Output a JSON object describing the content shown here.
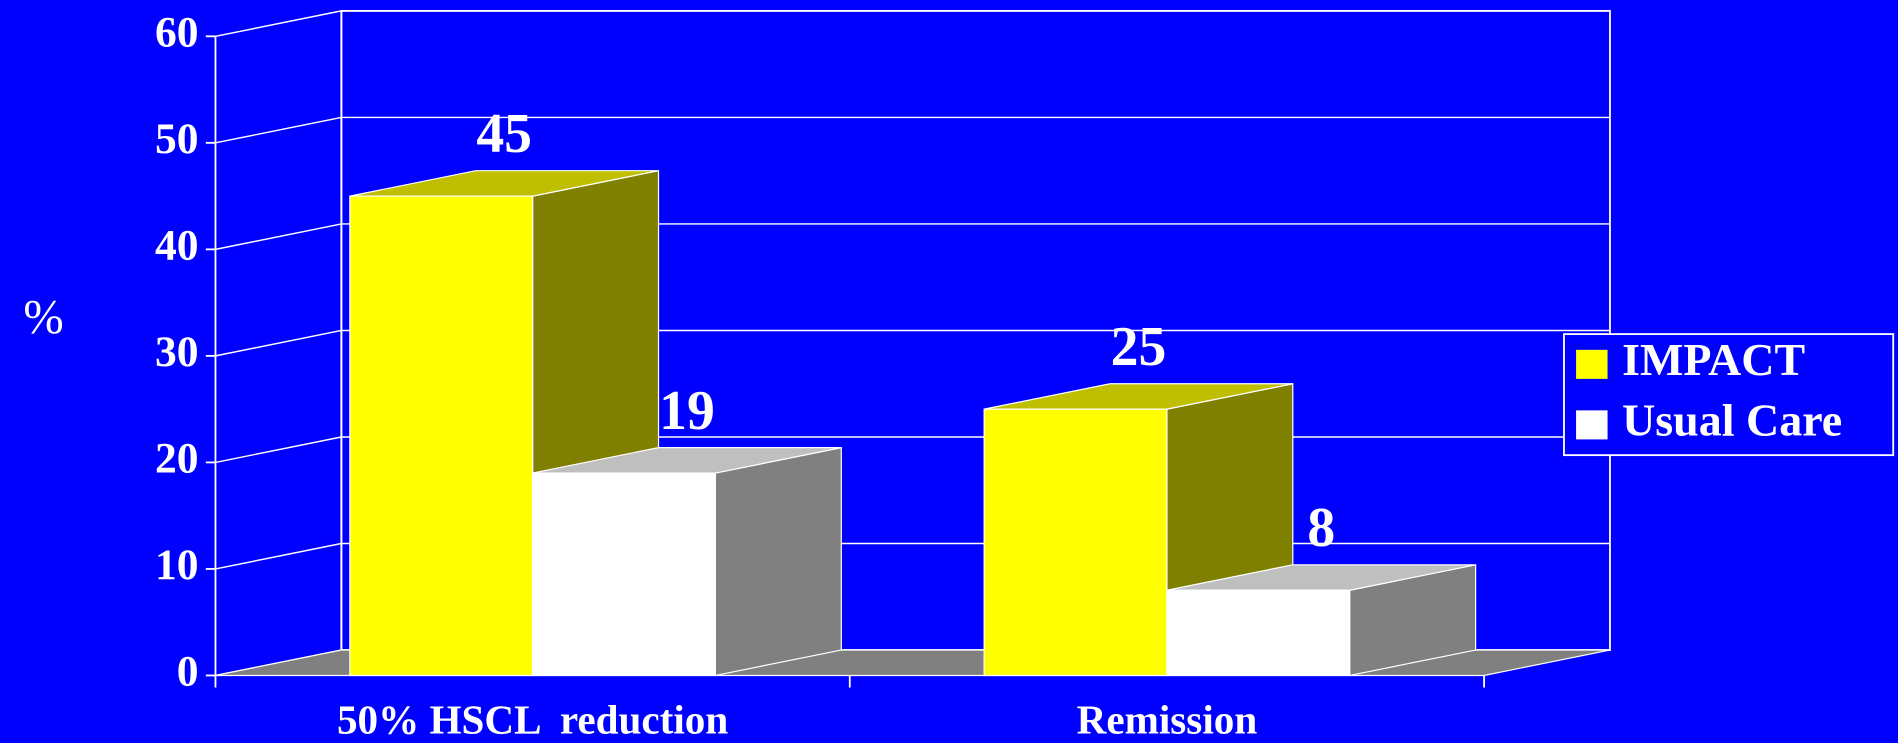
{
  "chart_data": {
    "type": "bar3d",
    "y_label": "%",
    "categories": [
      "50% HSCL  reduction",
      "Remission"
    ],
    "series": [
      {
        "name": "IMPACT",
        "color": "#ffff00",
        "values": [
          45,
          25
        ]
      },
      {
        "name": "Usual Care",
        "color": "#ffffff",
        "values": [
          19,
          8
        ]
      }
    ],
    "ylim": [
      0,
      60
    ],
    "yticks": [
      0,
      10,
      20,
      30,
      40,
      50,
      60
    ],
    "grid": true,
    "legend": "right"
  }
}
